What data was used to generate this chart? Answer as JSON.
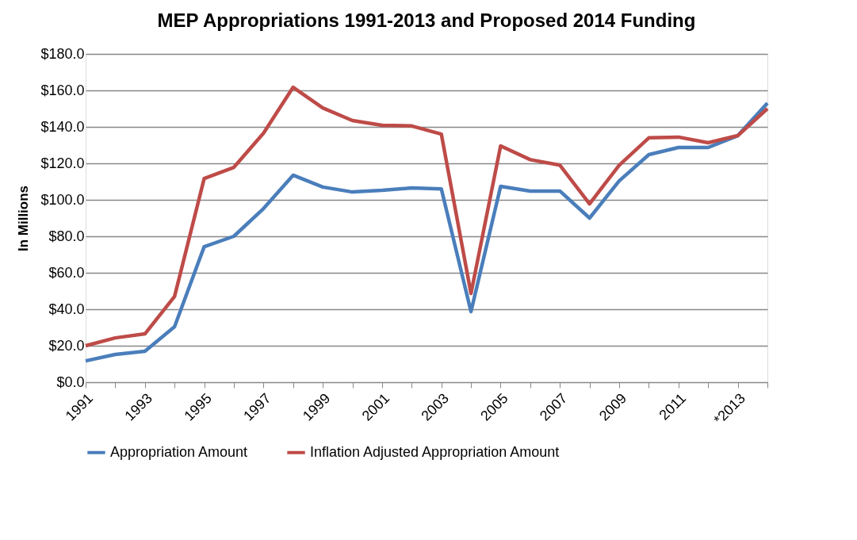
{
  "chart_data": {
    "type": "line",
    "title": "MEP Appropriations 1991-2013 and Proposed 2014 Funding",
    "ylabel": "In Millions",
    "categories": [
      "1991",
      null,
      "1993",
      null,
      "1995",
      null,
      "1997",
      null,
      "1999",
      null,
      "2001",
      null,
      "2003",
      null,
      "2005",
      null,
      "2007",
      null,
      "2009",
      null,
      "2011",
      null,
      "*2013",
      null
    ],
    "series": [
      {
        "name": "Appropriation Amount",
        "color": "#4a7ebb",
        "values": [
          11.7,
          15.2,
          17,
          30.4,
          74.3,
          80,
          95.2,
          113.5,
          107,
          104.3,
          105.2,
          106.5,
          106,
          38.7,
          107.4,
          104.8,
          104.8,
          90,
          110.4,
          124.8,
          128.7,
          128.7,
          135.2,
          153
        ]
      },
      {
        "name": "Inflation Adjusted Appropriation Amount",
        "color": "#be4b48",
        "values": [
          20,
          24.3,
          26.5,
          47,
          111.7,
          117.8,
          136.5,
          161.7,
          150.4,
          143.5,
          140.9,
          140.5,
          136,
          48.7,
          129.6,
          122,
          119,
          97.8,
          119,
          134,
          134.4,
          131.3,
          135.2,
          150
        ]
      }
    ],
    "ylim": [
      0,
      180
    ],
    "yticks": [
      {
        "value": 0,
        "label": "$0.0"
      },
      {
        "value": 20,
        "label": "$20.0"
      },
      {
        "value": 40,
        "label": "$40.0"
      },
      {
        "value": 60,
        "label": "$60.0"
      },
      {
        "value": 80,
        "label": "$80.0"
      },
      {
        "value": 100,
        "label": "$100.0"
      },
      {
        "value": 120,
        "label": "$120.0"
      },
      {
        "value": 140,
        "label": "$140.0"
      },
      {
        "value": 160,
        "label": "$160.0"
      },
      {
        "value": 180,
        "label": "$180.0"
      }
    ],
    "grid": "y",
    "legend": "bottom",
    "marker": "none",
    "line_style": "solid"
  }
}
